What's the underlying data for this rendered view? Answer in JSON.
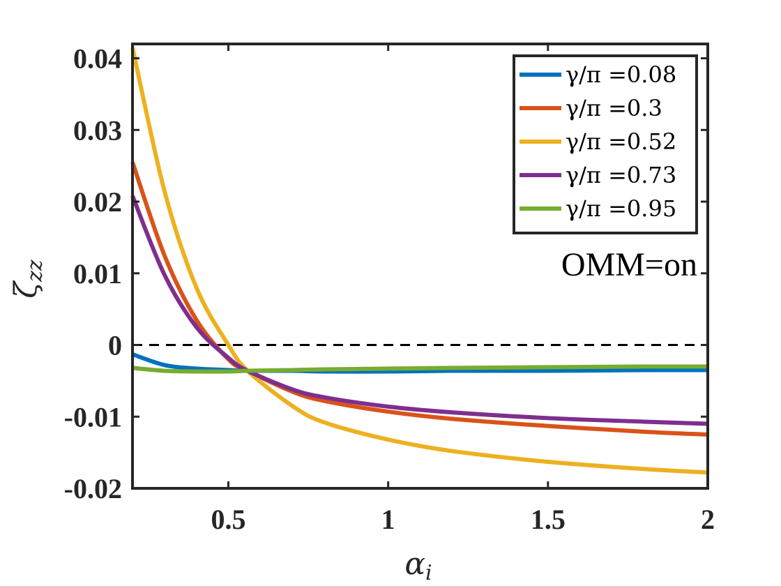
{
  "chart_data": {
    "type": "line",
    "title": "",
    "xlabel_base": "α",
    "xlabel_sub": "i",
    "ylabel_base": "ζ",
    "ylabel_sub": "zz",
    "xlim": [
      0.2,
      2
    ],
    "ylim": [
      -0.02,
      0.042
    ],
    "x_ticks": [
      0.5,
      1,
      1.5,
      2
    ],
    "x_tick_labels": [
      "0.5",
      "1",
      "1.5",
      "2"
    ],
    "y_ticks": [
      0.04,
      0.03,
      0.02,
      0.01,
      0,
      -0.01,
      -0.02
    ],
    "y_tick_labels": [
      "0.04",
      "0.03",
      "0.02",
      "0.01",
      "0",
      "-0.01",
      "-0.02"
    ],
    "grid": false,
    "legend_position": "top-right",
    "annotation": "OMM=on",
    "reference_line": {
      "y": 0,
      "style": "dashed",
      "color": "#000000"
    },
    "x": [
      0.2,
      0.3,
      0.4,
      0.5,
      0.56,
      0.7,
      0.8,
      1.0,
      1.2,
      1.5,
      1.8,
      2.0
    ],
    "series": [
      {
        "name": "γ/π =0.08",
        "color": "#0072BD",
        "values": [
          -0.0013,
          -0.0028,
          -0.0033,
          -0.0035,
          -0.0036,
          -0.0036,
          -0.0037,
          -0.0037,
          -0.0036,
          -0.0036,
          -0.0035,
          -0.0035
        ]
      },
      {
        "name": "γ/π =0.3",
        "color": "#D95319",
        "values": [
          0.0255,
          0.0125,
          0.0035,
          -0.002,
          -0.0036,
          -0.0065,
          -0.0078,
          -0.0093,
          -0.0103,
          -0.0113,
          -0.0121,
          -0.0125
        ]
      },
      {
        "name": "γ/π =0.52",
        "color": "#EDB120",
        "values": [
          0.0415,
          0.0215,
          0.008,
          0.0,
          -0.0036,
          -0.0085,
          -0.0108,
          -0.0132,
          -0.0148,
          -0.0163,
          -0.0173,
          -0.0178
        ]
      },
      {
        "name": "γ/π =0.73",
        "color": "#7E2F8E",
        "values": [
          0.0208,
          0.0098,
          0.0025,
          -0.0018,
          -0.0036,
          -0.0062,
          -0.0073,
          -0.0086,
          -0.0094,
          -0.0102,
          -0.0107,
          -0.011
        ]
      },
      {
        "name": "γ/π =0.95",
        "color": "#77AC30",
        "values": [
          -0.0032,
          -0.0036,
          -0.0037,
          -0.0037,
          -0.0036,
          -0.0035,
          -0.0034,
          -0.0033,
          -0.0032,
          -0.0031,
          -0.003,
          -0.003
        ]
      }
    ]
  }
}
